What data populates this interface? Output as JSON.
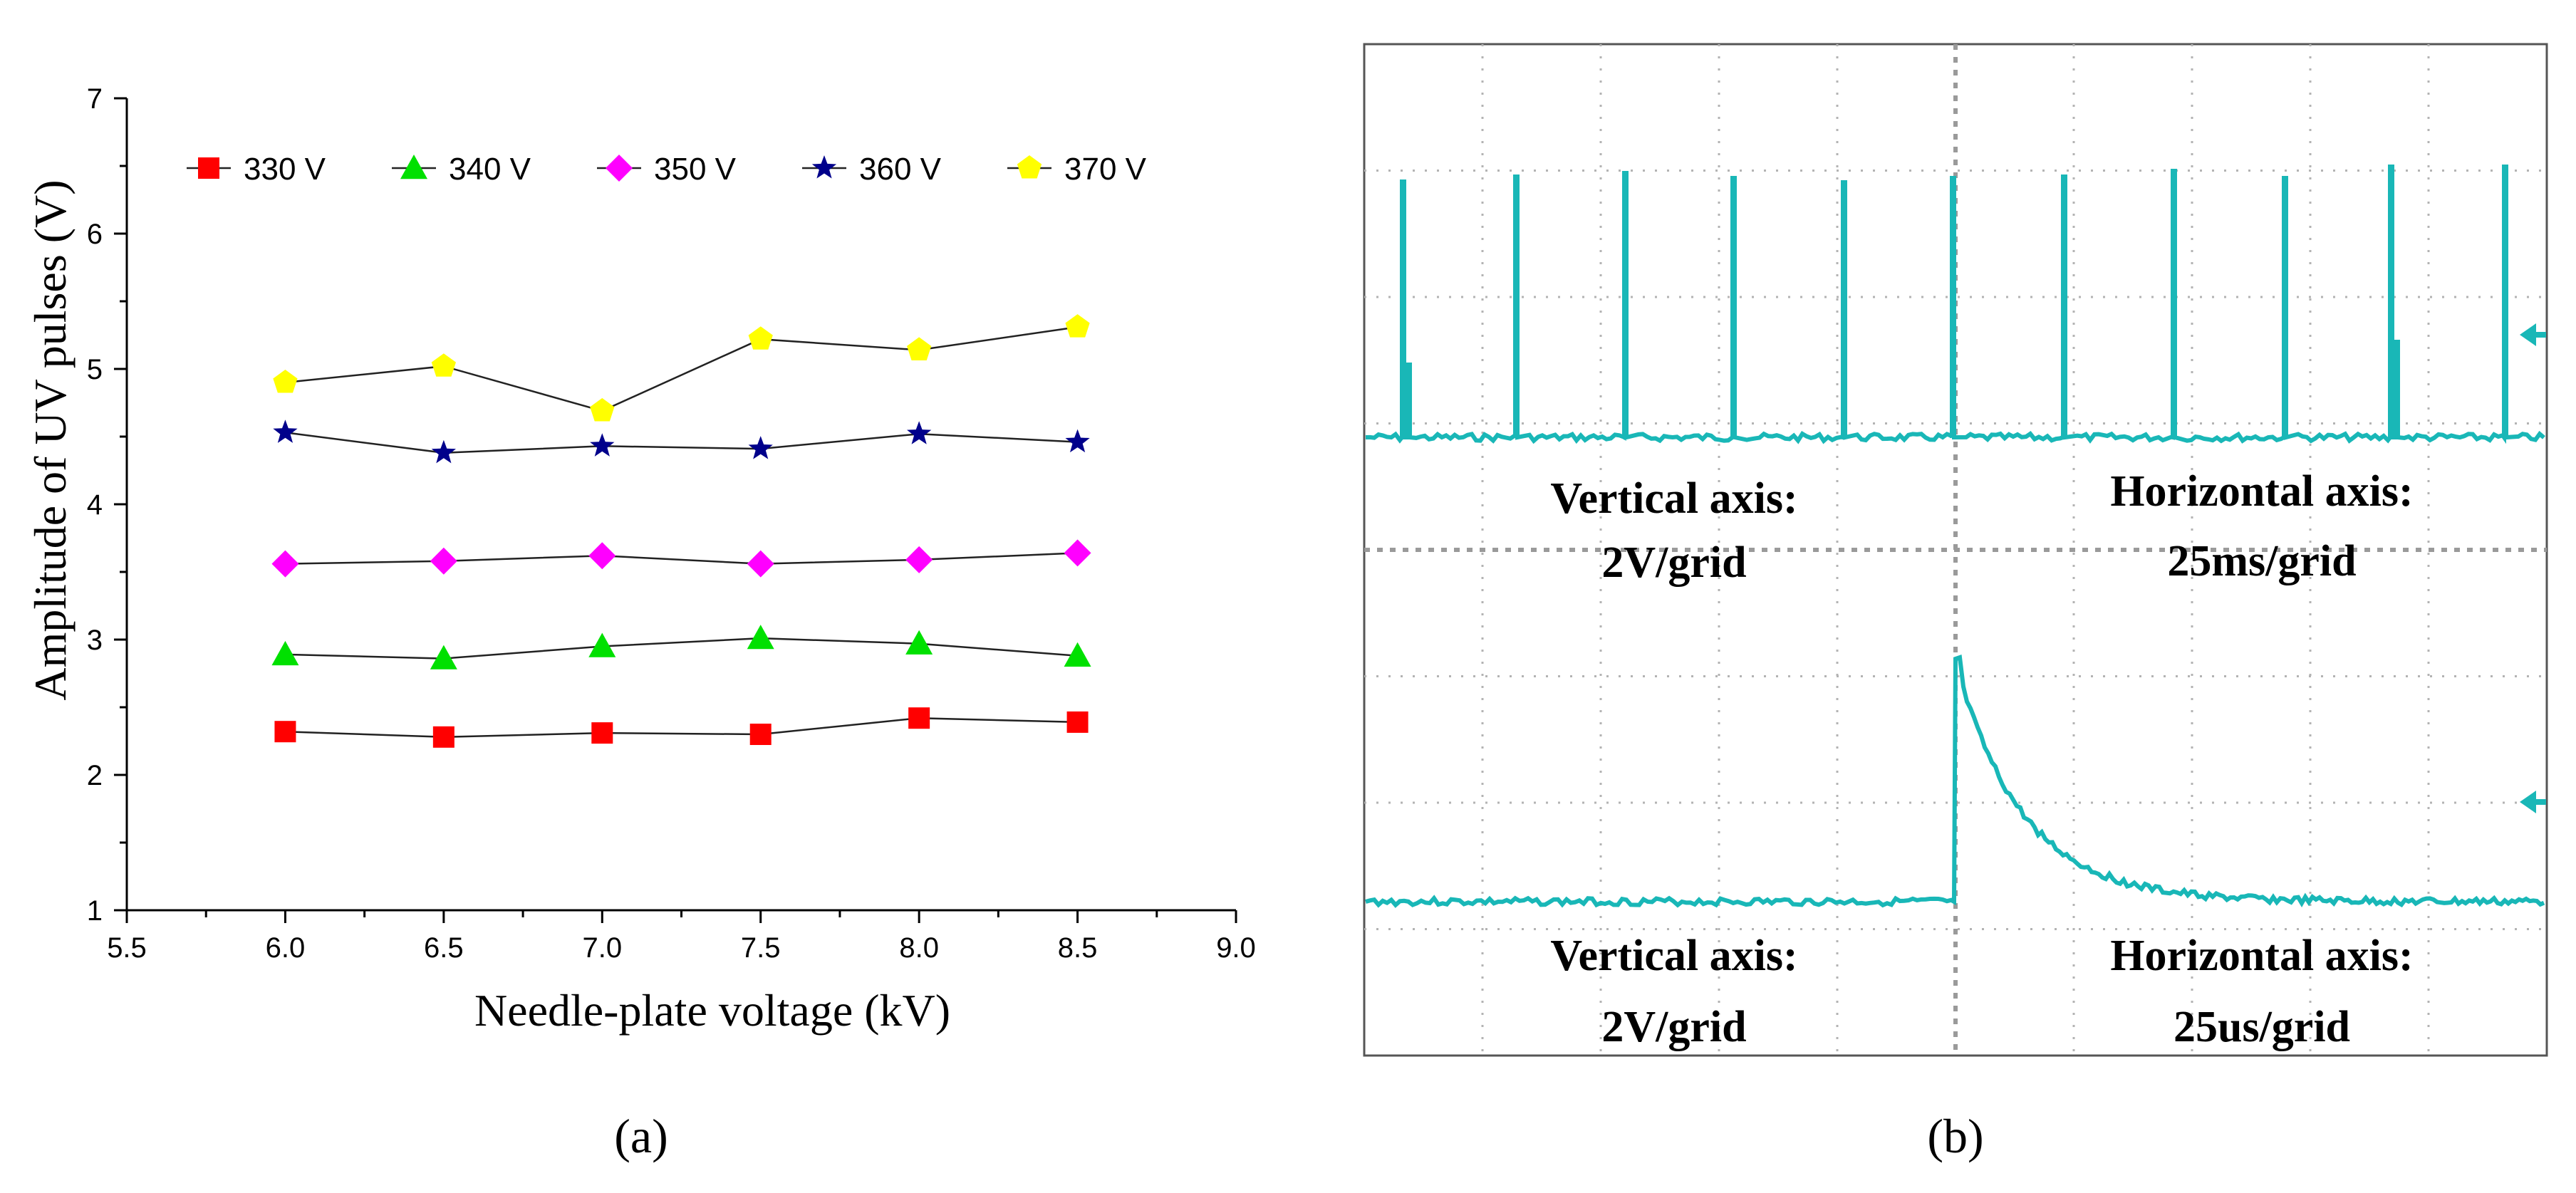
{
  "panels": {
    "a_label": "(a)",
    "b_label": "(b)"
  },
  "chart_data": [
    {
      "type": "line",
      "xlabel": "Needle-plate voltage (kV)",
      "ylabel": "Amplitude of UV pulses (V)",
      "xlim": [
        5.5,
        9.0
      ],
      "ylim": [
        1,
        7
      ],
      "x_ticks": [
        "5.5",
        "6.0",
        "6.5",
        "7.0",
        "7.5",
        "8.0",
        "8.5",
        "9.0"
      ],
      "y_ticks": [
        "1",
        "2",
        "3",
        "4",
        "5",
        "6",
        "7"
      ],
      "x": [
        6.0,
        6.5,
        7.0,
        7.5,
        8.0,
        8.5
      ],
      "legend_position": "top",
      "grid": false,
      "series": [
        {
          "name": "330 V",
          "marker": "square",
          "color": "#ff0000",
          "values": [
            2.32,
            2.28,
            2.31,
            2.3,
            2.42,
            2.39
          ]
        },
        {
          "name": "340 V",
          "marker": "triangle",
          "color": "#00e000",
          "values": [
            2.89,
            2.86,
            2.95,
            3.01,
            2.97,
            2.88
          ]
        },
        {
          "name": "350 V",
          "marker": "diamond",
          "color": "#ff00ff",
          "values": [
            3.56,
            3.58,
            3.62,
            3.56,
            3.59,
            3.64
          ]
        },
        {
          "name": "360 V",
          "marker": "star",
          "color": "#00008b",
          "values": [
            4.53,
            4.38,
            4.43,
            4.41,
            4.52,
            4.46
          ]
        },
        {
          "name": "370 V",
          "marker": "pentagon",
          "color": "#ffff00",
          "values": [
            4.9,
            5.02,
            4.69,
            5.22,
            5.14,
            5.31
          ]
        }
      ]
    },
    {
      "type": "line",
      "title": "",
      "grid": true,
      "grid_divisions": [
        10,
        8
      ],
      "traces": [
        {
          "kind": "pulse-train",
          "pulse_count": 11,
          "vertical_label_1": "Vertical axis:",
          "vertical_label_2": "2V/grid",
          "horizontal_label_1": "Horizontal axis:",
          "horizontal_label_2": "25ms/grid"
        },
        {
          "kind": "single-pulse",
          "vertical_label_1": "Vertical axis:",
          "vertical_label_2": "2V/grid",
          "horizontal_label_1": "Horizontal axis:",
          "horizontal_label_2": "25us/grid"
        }
      ],
      "trace_color": "#19b7b7"
    }
  ]
}
